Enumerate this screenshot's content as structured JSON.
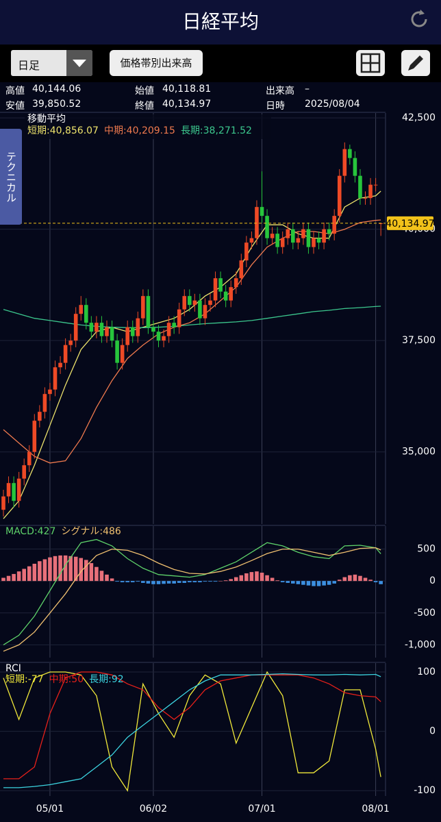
{
  "header": {
    "title": "日経平均"
  },
  "toolbar": {
    "period": "日足",
    "volume_button": "価格帯別出来高"
  },
  "info": [
    {
      "label": "高値",
      "value": "40,144.06"
    },
    {
      "label": "始値",
      "value": "40,118.81"
    },
    {
      "label": "出来高",
      "value": "–"
    },
    {
      "label": "安値",
      "value": "39,850.52"
    },
    {
      "label": "終値",
      "value": "40,134.97"
    },
    {
      "label": "日時",
      "value": "2025/08/04"
    }
  ],
  "side_tab": "テクニカル",
  "chart_data": [
    {
      "type": "candlestick",
      "title": "移動平均",
      "up_color": "#ee4a26",
      "down_color": "#27c53c",
      "candles": [
        [
          33700,
          34150,
          33550,
          34000
        ],
        [
          34000,
          34450,
          33850,
          34300
        ],
        [
          34300,
          34450,
          33750,
          33900
        ],
        [
          33900,
          34550,
          33750,
          34400
        ],
        [
          34400,
          34850,
          34250,
          34700
        ],
        [
          34700,
          35150,
          34550,
          35000
        ],
        [
          35000,
          35850,
          34850,
          35700
        ],
        [
          35700,
          36050,
          35550,
          35900
        ],
        [
          35900,
          36450,
          35750,
          36300
        ],
        [
          36300,
          36550,
          36150,
          36400
        ],
        [
          36400,
          37050,
          36250,
          36900
        ],
        [
          36900,
          37150,
          36750,
          37000
        ],
        [
          37000,
          37550,
          36850,
          37400
        ],
        [
          37400,
          37650,
          37250,
          37500
        ],
        [
          37500,
          38250,
          37350,
          38100
        ],
        [
          38100,
          38500,
          37950,
          38300
        ],
        [
          38300,
          38450,
          37750,
          37900
        ],
        [
          37900,
          38050,
          37550,
          37700
        ],
        [
          37700,
          38050,
          37550,
          37900
        ],
        [
          37900,
          38050,
          37450,
          37600
        ],
        [
          37600,
          37950,
          37450,
          37800
        ],
        [
          37800,
          37950,
          37350,
          37500
        ],
        [
          37500,
          37650,
          36850,
          37000
        ],
        [
          37000,
          37550,
          36850,
          37400
        ],
        [
          37400,
          37950,
          37250,
          37800
        ],
        [
          37800,
          37950,
          37450,
          37600
        ],
        [
          37600,
          38150,
          37450,
          38000
        ],
        [
          38000,
          38650,
          37850,
          38500
        ],
        [
          38500,
          38650,
          37650,
          37800
        ],
        [
          37800,
          37950,
          37550,
          37700
        ],
        [
          37700,
          37850,
          37350,
          37500
        ],
        [
          37500,
          37750,
          37350,
          37600
        ],
        [
          37600,
          38050,
          37450,
          37900
        ],
        [
          37900,
          38050,
          37650,
          37800
        ],
        [
          37800,
          38350,
          37650,
          38200
        ],
        [
          38200,
          38650,
          38050,
          38500
        ],
        [
          38500,
          38650,
          38150,
          38300
        ],
        [
          38300,
          38550,
          38150,
          38400
        ],
        [
          38400,
          38550,
          37850,
          38000
        ],
        [
          38000,
          38450,
          37850,
          38300
        ],
        [
          38300,
          38550,
          38150,
          38400
        ],
        [
          38400,
          39050,
          38250,
          38900
        ],
        [
          38900,
          39050,
          38450,
          38600
        ],
        [
          38600,
          38750,
          38250,
          38400
        ],
        [
          38400,
          38850,
          38250,
          38700
        ],
        [
          38700,
          39050,
          38550,
          38900
        ],
        [
          38900,
          39450,
          38750,
          39300
        ],
        [
          39300,
          39850,
          39150,
          39700
        ],
        [
          39700,
          39950,
          39550,
          39800
        ],
        [
          39800,
          40650,
          39650,
          40500
        ],
        [
          40500,
          41300,
          40150,
          40300
        ],
        [
          40300,
          40450,
          39650,
          39800
        ],
        [
          39800,
          40050,
          39650,
          39900
        ],
        [
          39900,
          40050,
          39450,
          39600
        ],
        [
          39600,
          39950,
          39450,
          39800
        ],
        [
          39800,
          40150,
          39650,
          40000
        ],
        [
          40000,
          40150,
          39550,
          39700
        ],
        [
          39700,
          39950,
          39550,
          39800
        ],
        [
          39800,
          40150,
          39650,
          40000
        ],
        [
          40000,
          40150,
          39450,
          39600
        ],
        [
          39600,
          39950,
          39450,
          39800
        ],
        [
          39800,
          39950,
          39550,
          39700
        ],
        [
          39700,
          40150,
          39550,
          40000
        ],
        [
          40000,
          40150,
          39750,
          39900
        ],
        [
          39900,
          40450,
          39750,
          40300
        ],
        [
          40300,
          41350,
          40150,
          41200
        ],
        [
          41200,
          41950,
          41050,
          41800
        ],
        [
          41800,
          41900,
          41450,
          41600
        ],
        [
          41600,
          41750,
          41050,
          41200
        ],
        [
          41200,
          41350,
          40550,
          40700
        ],
        [
          40700,
          40850,
          40550,
          40700
        ],
        [
          40700,
          41150,
          40550,
          41000
        ],
        [
          41000,
          41150,
          40850,
          41000
        ],
        [
          40118.81,
          40144.06,
          39850.52,
          40134.97
        ]
      ],
      "x": [
        0,
        3,
        6,
        9,
        12,
        15,
        18,
        21,
        24,
        27,
        30,
        33,
        36,
        39,
        42,
        45,
        48,
        51,
        54,
        57,
        60,
        63,
        66,
        69,
        72,
        73
      ],
      "series": [
        {
          "label": "短期:40,856.07",
          "color": "#eee36c",
          "values": [
            33500,
            33900,
            34700,
            35600,
            36500,
            37300,
            37700,
            37800,
            37700,
            37800,
            37900,
            38000,
            38200,
            38500,
            38700,
            39000,
            39600,
            40100,
            40100,
            39900,
            39800,
            39800,
            40500,
            40700,
            40750,
            40856.07
          ]
        },
        {
          "label": "中期:40,209.15",
          "color": "#f07a4e",
          "values": [
            35500,
            35200,
            34900,
            34750,
            34800,
            35300,
            36000,
            36600,
            37100,
            37400,
            37650,
            37800,
            37900,
            38100,
            38400,
            38700,
            39200,
            39600,
            39800,
            39950,
            39950,
            39900,
            40000,
            40150,
            40200,
            40209.15
          ]
        },
        {
          "label": "長期:38,271.52",
          "color": "#3cc88e",
          "values": [
            38200,
            38100,
            38000,
            37950,
            37900,
            37850,
            37820,
            37800,
            37790,
            37790,
            37800,
            37820,
            37850,
            37880,
            37900,
            37920,
            37950,
            38000,
            38050,
            38100,
            38150,
            38180,
            38220,
            38240,
            38265,
            38271.52
          ]
        }
      ],
      "last_price": 40134.97,
      "last_price_label": "40,134.97",
      "last_price_color": "#f2c21a",
      "ylim": [
        33380,
        42610
      ],
      "yticks": [
        {
          "value": 35000,
          "label": "35,000"
        },
        {
          "value": 37500,
          "label": "37,500"
        },
        {
          "value": 40000,
          "label": "40,000"
        },
        {
          "value": 42500,
          "label": "42,500"
        }
      ]
    },
    {
      "type": "macd",
      "x": [
        0,
        3,
        6,
        9,
        12,
        15,
        18,
        21,
        24,
        27,
        30,
        33,
        36,
        39,
        42,
        45,
        48,
        51,
        54,
        57,
        60,
        63,
        66,
        69,
        72,
        73
      ],
      "series": [
        {
          "label": "MACD:427",
          "color": "#5ed26a",
          "values": [
            -1000,
            -850,
            -550,
            -150,
            250,
            600,
            650,
            550,
            350,
            200,
            100,
            80,
            60,
            100,
            200,
            300,
            450,
            600,
            550,
            450,
            380,
            350,
            550,
            560,
            520,
            427
          ]
        },
        {
          "label": "シグナル:486",
          "color": "#f0c070",
          "values": [
            -1100,
            -1000,
            -800,
            -500,
            -200,
            150,
            400,
            500,
            480,
            400,
            280,
            180,
            120,
            110,
            150,
            220,
            320,
            430,
            500,
            500,
            450,
            400,
            450,
            510,
            520,
            486
          ]
        }
      ],
      "histogram": [
        50,
        80,
        110,
        150,
        190,
        230,
        270,
        310,
        340,
        370,
        390,
        400,
        400,
        390,
        380,
        360,
        330,
        280,
        220,
        160,
        100,
        40,
        -10,
        -20,
        -20,
        -20,
        -10,
        -30,
        -40,
        -50,
        -50,
        -45,
        -40,
        -40,
        -30,
        -30,
        -20,
        -20,
        -20,
        -10,
        -10,
        -10,
        0,
        10,
        30,
        60,
        90,
        120,
        140,
        150,
        130,
        90,
        50,
        10,
        -20,
        -30,
        -40,
        -50,
        -60,
        -70,
        -80,
        -80,
        -70,
        -60,
        -40,
        20,
        60,
        90,
        100,
        80,
        50,
        20,
        -20,
        -50
      ],
      "hist_up_color": "#e8707a",
      "hist_down_color": "#3c8fe0",
      "ylim": [
        -1200,
        860
      ],
      "yticks": [
        {
          "value": -1000,
          "label": "-1,000"
        },
        -500,
        0,
        500
      ]
    },
    {
      "type": "rci",
      "title": "RCI",
      "x": [
        0,
        3,
        6,
        9,
        12,
        15,
        18,
        21,
        24,
        27,
        30,
        33,
        36,
        39,
        42,
        45,
        48,
        51,
        54,
        57,
        60,
        63,
        66,
        69,
        72,
        73
      ],
      "series": [
        {
          "label": "短期:-77",
          "color": "#f2ea3a",
          "values": [
            90,
            20,
            90,
            100,
            100,
            95,
            60,
            -60,
            -100,
            80,
            30,
            -10,
            60,
            95,
            80,
            -20,
            40,
            100,
            60,
            -70,
            -70,
            -50,
            70,
            70,
            -30,
            -77
          ]
        },
        {
          "label": "中期:50",
          "color": "#e8201a",
          "values": [
            -80,
            -80,
            -60,
            30,
            90,
            100,
            100,
            95,
            80,
            70,
            40,
            20,
            40,
            70,
            85,
            90,
            95,
            95,
            95,
            95,
            90,
            80,
            65,
            60,
            58,
            50
          ]
        },
        {
          "label": "長期:92",
          "color": "#3cd4e0",
          "values": [
            -95,
            -95,
            -93,
            -90,
            -85,
            -80,
            -60,
            -40,
            -10,
            10,
            30,
            50,
            70,
            85,
            95,
            95,
            95,
            96,
            97,
            96,
            95,
            95,
            96,
            95,
            96,
            92
          ]
        }
      ],
      "ylim": [
        -109,
        115
      ],
      "yticks": [
        -100,
        0,
        100
      ],
      "xticks": [
        {
          "value": 9,
          "label": "05/01"
        },
        {
          "value": 29,
          "label": "06/02"
        },
        {
          "value": 50,
          "label": "07/01"
        },
        {
          "value": 72,
          "label": "08/01"
        }
      ]
    }
  ]
}
